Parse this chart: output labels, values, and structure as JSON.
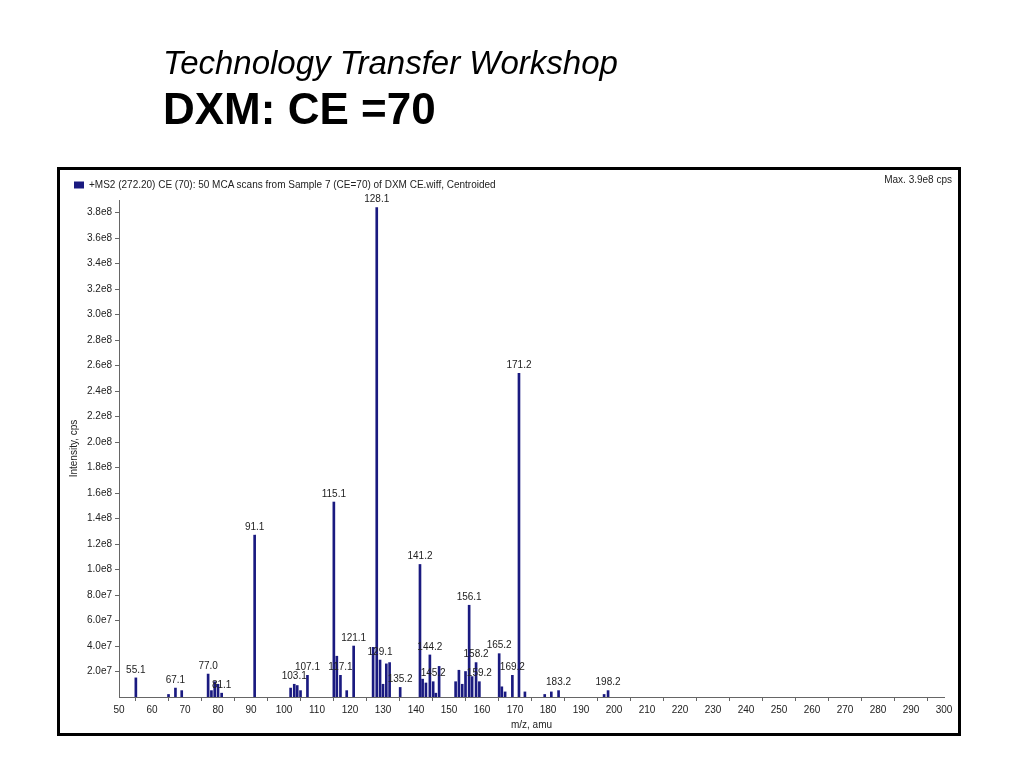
{
  "chart_data": {
    "type": "bar",
    "title": "DXM: CE =70",
    "subtitle": "Technology Transfer Workshop",
    "xlabel": "m/z, amu",
    "ylabel": "Intensity, cps",
    "x": [
      55.1,
      65,
      67.1,
      69,
      77.0,
      78,
      79,
      80,
      81.1,
      91.1,
      102,
      103.1,
      104,
      105,
      107.1,
      115.1,
      116,
      117.1,
      119,
      121.1,
      127,
      128.1,
      129.1,
      130,
      131,
      132,
      135.2,
      141.2,
      142,
      143,
      144.2,
      145.2,
      146,
      147,
      152,
      153,
      154,
      155,
      156.1,
      157,
      158.2,
      159.2,
      165.2,
      166,
      167,
      169.2,
      171.2,
      173,
      179,
      181,
      183.2,
      197,
      198.2
    ],
    "series": [
      {
        "name": "+MS2 (272.20) CE (70): 50 MCA scans from Sample 7 (CE=70) of DXM CE.wiff, Centroided",
        "color": "#1a1a80",
        "values": [
          15000000,
          2000000,
          7000000,
          5000000,
          18000000,
          5000000,
          12000000,
          10000000,
          3000000,
          127000000,
          7000000,
          10000000,
          9000000,
          5000000,
          17000000,
          153000000,
          32000000,
          17000000,
          5000000,
          40000000,
          39000000,
          384000000,
          29000000,
          10000000,
          26000000,
          27000000,
          7500000,
          104000000,
          14000000,
          11000000,
          33000000,
          12000000,
          3000000,
          24000000,
          12000000,
          21000000,
          10000000,
          20000000,
          72000000,
          16000000,
          27000000,
          12000000,
          34000000,
          8000000,
          4000000,
          17000000,
          254000000,
          4000000,
          2000000,
          4000000,
          5000000,
          2000000,
          5000000
        ]
      }
    ],
    "xlim": [
      50,
      300
    ],
    "xticks": [
      50,
      60,
      70,
      80,
      90,
      100,
      110,
      120,
      130,
      140,
      150,
      160,
      170,
      180,
      190,
      200,
      210,
      220,
      230,
      240,
      250,
      260,
      270,
      280,
      290,
      300
    ],
    "ylim": [
      0,
      390000000
    ],
    "yticks": [
      {
        "value": 20000000,
        "label": "2.0e7"
      },
      {
        "value": 40000000,
        "label": "4.0e7"
      },
      {
        "value": 60000000,
        "label": "6.0e7"
      },
      {
        "value": 80000000,
        "label": "8.0e7"
      },
      {
        "value": 100000000,
        "label": "1.0e8"
      },
      {
        "value": 120000000,
        "label": "1.2e8"
      },
      {
        "value": 140000000,
        "label": "1.4e8"
      },
      {
        "value": 160000000,
        "label": "1.6e8"
      },
      {
        "value": 180000000,
        "label": "1.8e8"
      },
      {
        "value": 200000000,
        "label": "2.0e8"
      },
      {
        "value": 220000000,
        "label": "2.2e8"
      },
      {
        "value": 240000000,
        "label": "2.4e8"
      },
      {
        "value": 260000000,
        "label": "2.6e8"
      },
      {
        "value": 280000000,
        "label": "2.8e8"
      },
      {
        "value": 300000000,
        "label": "3.0e8"
      },
      {
        "value": 320000000,
        "label": "3.2e8"
      },
      {
        "value": 340000000,
        "label": "3.4e8"
      },
      {
        "value": 360000000,
        "label": "3.6e8"
      },
      {
        "value": 380000000,
        "label": "3.8e8"
      }
    ],
    "grid": false,
    "legend": "top left",
    "annotations": [
      "Max. 3.9e8 cps",
      {
        "text": "55.1",
        "x": 55.1,
        "y": 15000000
      },
      {
        "text": "67.1",
        "x": 67.1,
        "y": 7000000
      },
      {
        "text": "77.0",
        "x": 77.0,
        "y": 18000000
      },
      {
        "text": "81.1",
        "x": 81.1,
        "y": 3000000
      },
      {
        "text": "91.1",
        "x": 91.1,
        "y": 127000000
      },
      {
        "text": "103.1",
        "x": 103.1,
        "y": 10000000
      },
      {
        "text": "107.1",
        "x": 107.1,
        "y": 17000000
      },
      {
        "text": "115.1",
        "x": 115.1,
        "y": 153000000
      },
      {
        "text": "117.1",
        "x": 117.1,
        "y": 17000000
      },
      {
        "text": "121.1",
        "x": 121.1,
        "y": 40000000
      },
      {
        "text": "128.1",
        "x": 128.1,
        "y": 384000000
      },
      {
        "text": "129.1",
        "x": 129.1,
        "y": 29000000
      },
      {
        "text": "135.2",
        "x": 135.2,
        "y": 7500000
      },
      {
        "text": "141.2",
        "x": 141.2,
        "y": 104000000
      },
      {
        "text": "144.2",
        "x": 144.2,
        "y": 33000000
      },
      {
        "text": "145.2",
        "x": 145.2,
        "y": 12000000
      },
      {
        "text": "156.1",
        "x": 156.1,
        "y": 72000000
      },
      {
        "text": "158.2",
        "x": 158.2,
        "y": 27000000
      },
      {
        "text": "159.2",
        "x": 159.2,
        "y": 12000000
      },
      {
        "text": "165.2",
        "x": 165.2,
        "y": 34000000
      },
      {
        "text": "169.2",
        "x": 169.2,
        "y": 17000000
      },
      {
        "text": "171.2",
        "x": 171.2,
        "y": 254000000
      },
      {
        "text": "183.2",
        "x": 183.2,
        "y": 5000000
      },
      {
        "text": "198.2",
        "x": 198.2,
        "y": 5000000
      }
    ]
  }
}
